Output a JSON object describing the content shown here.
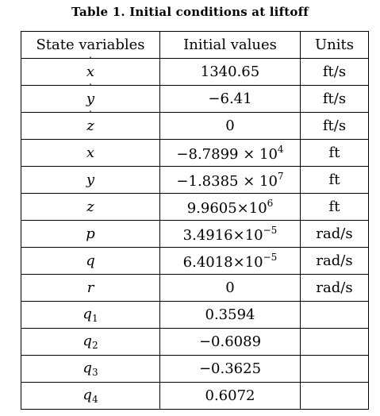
{
  "caption": "Table 1.  Initial conditions at liftoff",
  "headers": {
    "state": "State variables",
    "initial": "Initial values",
    "units": "Units"
  },
  "rows": [
    {
      "sym": "x",
      "dot": "˙",
      "sub": "",
      "mant": "1340.65",
      "exp": "",
      "unit": "ft/s"
    },
    {
      "sym": "y",
      "dot": "˙",
      "sub": "",
      "mant": "−6.41",
      "exp": "",
      "unit": "ft/s"
    },
    {
      "sym": "z",
      "dot": "˙",
      "sub": "",
      "mant": "0",
      "exp": "",
      "unit": "ft/s"
    },
    {
      "sym": "x",
      "dot": "",
      "sub": "",
      "mant": "−8.7899 × 10",
      "exp": "4",
      "unit": "ft"
    },
    {
      "sym": "y",
      "dot": "",
      "sub": "",
      "mant": "−1.8385 × 10",
      "exp": "7",
      "unit": "ft"
    },
    {
      "sym": "z",
      "dot": "",
      "sub": "",
      "mant": "9.9605×10",
      "exp": "6",
      "unit": "ft"
    },
    {
      "sym": "p",
      "dot": "",
      "sub": "",
      "mant": "3.4916×10",
      "exp": "−5",
      "unit": "rad/s"
    },
    {
      "sym": "q",
      "dot": "",
      "sub": "",
      "mant": "6.4018×10",
      "exp": "−5",
      "unit": "rad/s"
    },
    {
      "sym": "r",
      "dot": "",
      "sub": "",
      "mant": "0",
      "exp": "",
      "unit": "rad/s"
    },
    {
      "sym": "q",
      "dot": "",
      "sub": "1",
      "mant": "0.3594",
      "exp": "",
      "unit": ""
    },
    {
      "sym": "q",
      "dot": "",
      "sub": "2",
      "mant": "−0.6089",
      "exp": "",
      "unit": ""
    },
    {
      "sym": "q",
      "dot": "",
      "sub": "3",
      "mant": "−0.3625",
      "exp": "",
      "unit": ""
    },
    {
      "sym": "q",
      "dot": "",
      "sub": "4",
      "mant": "0.6072",
      "exp": "",
      "unit": ""
    }
  ]
}
